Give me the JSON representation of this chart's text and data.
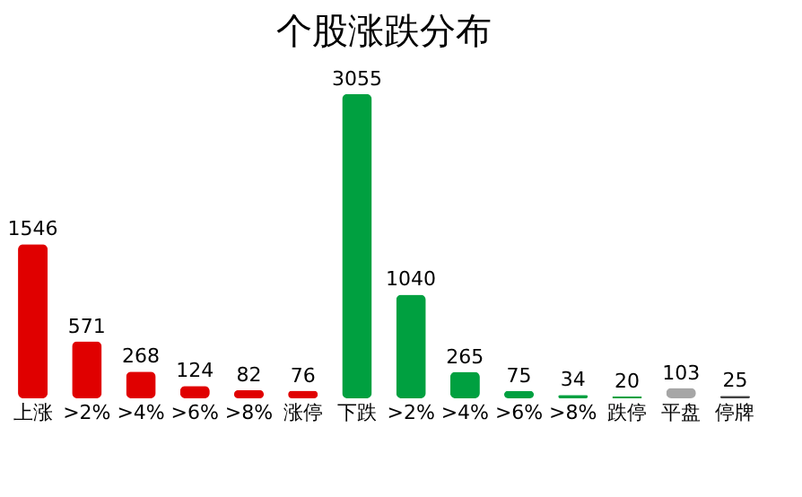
{
  "chart_data": {
    "type": "bar",
    "title": "个股涨跌分布",
    "categories": [
      "上涨",
      ">2%",
      ">4%",
      ">6%",
      ">8%",
      "涨停",
      "下跌",
      ">2%",
      ">4%",
      ">6%",
      ">8%",
      "跌停",
      "平盘",
      "停牌"
    ],
    "values": [
      1546,
      571,
      268,
      124,
      82,
      76,
      3055,
      1040,
      265,
      75,
      34,
      20,
      103,
      25
    ],
    "colors": [
      "#e00000",
      "#e00000",
      "#e00000",
      "#e00000",
      "#e00000",
      "#e00000",
      "#00a040",
      "#00a040",
      "#00a040",
      "#00a040",
      "#00a040",
      "#00a040",
      "#a6a6a6",
      "#404040"
    ],
    "data_labels": true
  }
}
